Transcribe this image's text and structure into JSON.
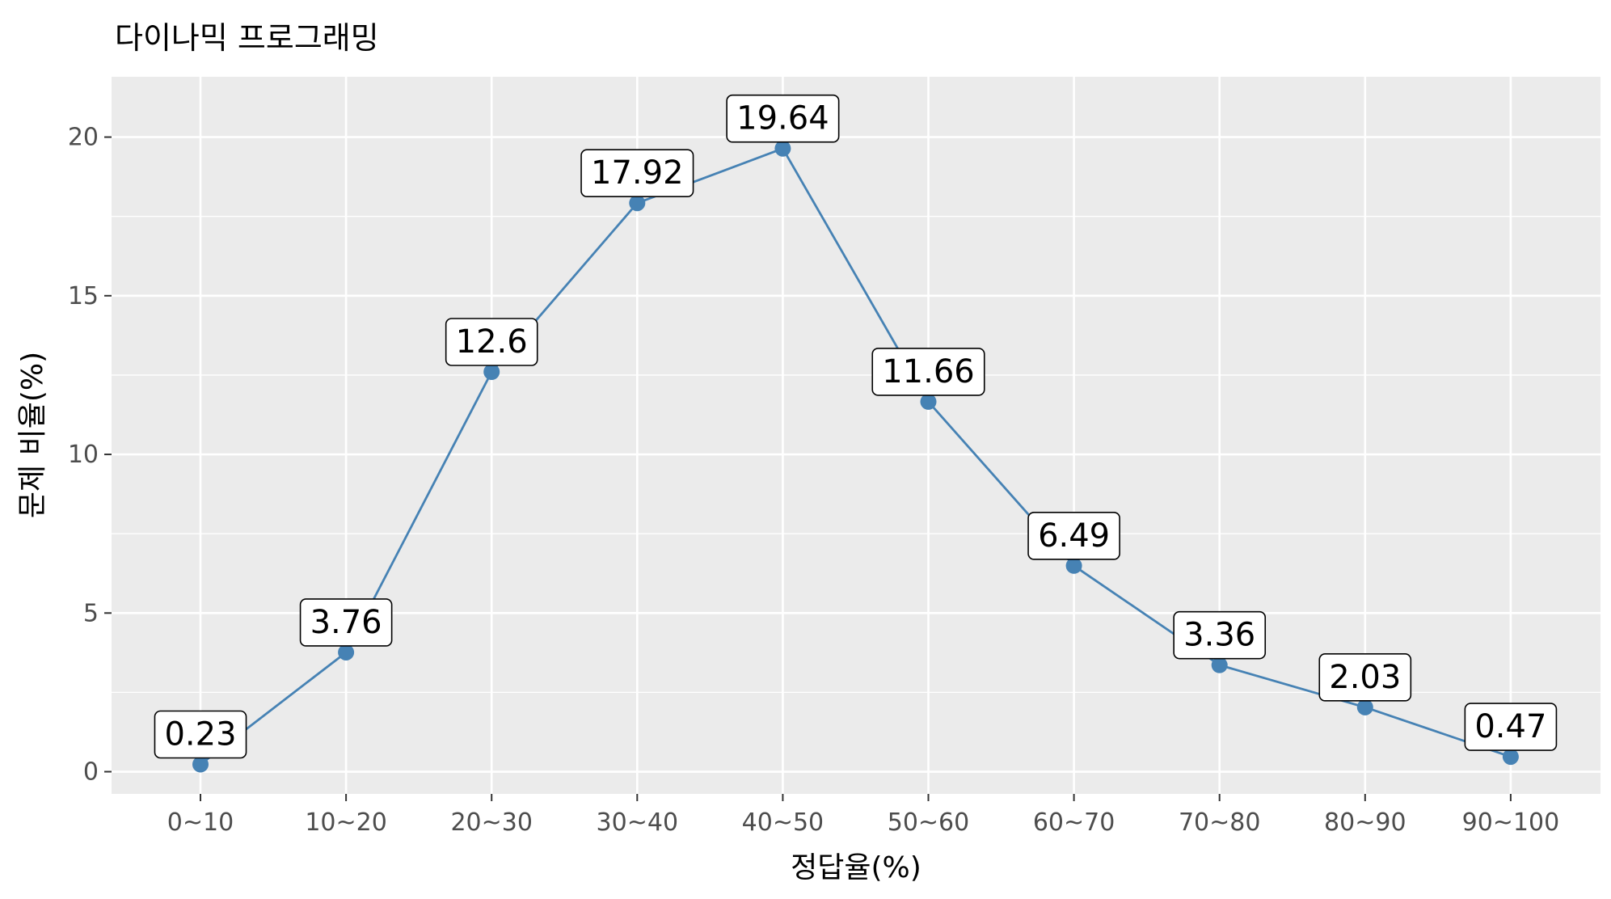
{
  "chart_data": {
    "type": "line",
    "title": "다이나믹 프로그래밍",
    "xlabel": "정답율(%)",
    "ylabel": "문제 비율(%)",
    "categories": [
      "0~10",
      "10~20",
      "20~30",
      "30~40",
      "40~50",
      "50~60",
      "60~70",
      "70~80",
      "80~90",
      "90~100"
    ],
    "values": [
      0.23,
      3.76,
      12.6,
      17.92,
      19.64,
      11.66,
      6.49,
      3.36,
      2.03,
      0.47
    ],
    "data_labels": [
      "0.23",
      "3.76",
      "12.6",
      "17.92",
      "19.64",
      "11.66",
      "6.49",
      "3.36",
      "2.03",
      "0.47"
    ],
    "y_ticks": [
      0,
      5,
      10,
      15,
      20
    ],
    "y_tick_labels": [
      "0",
      "5",
      "10",
      "15",
      "20"
    ],
    "ylim": [
      -0.7,
      21.9
    ],
    "grid": true,
    "legend": "none",
    "colors": {
      "series": "#4682B4",
      "panel_background": "#EBEBEB",
      "grid": "#FFFFFF",
      "tick_text": "#4D4D4D",
      "tick_mark": "#333333"
    }
  }
}
